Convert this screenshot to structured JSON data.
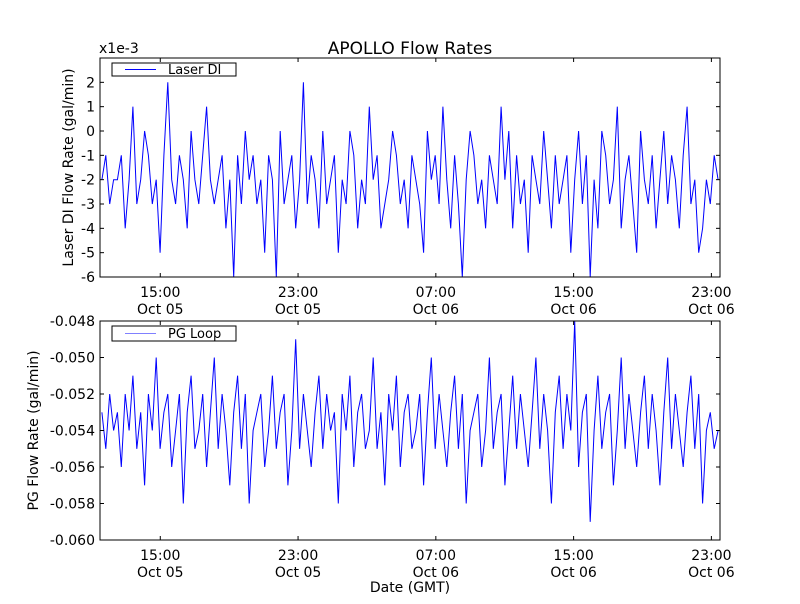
{
  "chart_data": [
    {
      "type": "line",
      "title": "APOLLO Flow Rates",
      "ylabel": "Laser DI Flow Rate (gal/min)",
      "offset_label": "x1e-3",
      "legend": {
        "label": "Laser DI",
        "placement": "top-left"
      },
      "color": "#0000ff",
      "ylim": [
        -6,
        3
      ],
      "yticks": [
        {
          "v": 2,
          "label": "2"
        },
        {
          "v": 1,
          "label": "1"
        },
        {
          "v": 0,
          "label": "0"
        },
        {
          "v": -1,
          "label": "-1"
        },
        {
          "v": -2,
          "label": "-2"
        },
        {
          "v": -3,
          "label": "-3"
        },
        {
          "v": -4,
          "label": "-4"
        },
        {
          "v": -5,
          "label": "-5"
        },
        {
          "v": -6,
          "label": "-6"
        }
      ],
      "x_range_hours": [
        0,
        36
      ],
      "xticks": [
        {
          "hour": 3.5,
          "time": "15:00",
          "date": "Oct 05"
        },
        {
          "hour": 11.5,
          "time": "23:00",
          "date": "Oct 05"
        },
        {
          "hour": 19.5,
          "time": "07:00",
          "date": "Oct 06"
        },
        {
          "hour": 27.5,
          "time": "15:00",
          "date": "Oct 06"
        },
        {
          "hour": 35.5,
          "time": "23:00",
          "date": "Oct 06"
        }
      ],
      "values": [
        -2,
        -1,
        -3,
        -2,
        -2,
        -1,
        -4,
        -2,
        1,
        -3,
        -2,
        0,
        -1,
        -3,
        -2,
        -5,
        -1,
        2,
        -2,
        -3,
        -1,
        -2,
        -4,
        0,
        -2,
        -3,
        -1,
        1,
        -2,
        -3,
        -2,
        -1,
        -4,
        -2,
        -6,
        -1,
        -3,
        0,
        -2,
        -1,
        -3,
        -2,
        -5,
        -1,
        -2,
        -6,
        0,
        -3,
        -2,
        -1,
        -4,
        -2,
        2,
        -3,
        -1,
        -2,
        -4,
        0,
        -3,
        -2,
        -1,
        -5,
        -2,
        -3,
        0,
        -1,
        -4,
        -2,
        -3,
        1,
        -2,
        -1,
        -4,
        -3,
        -2,
        0,
        -1,
        -3,
        -2,
        -4,
        -1,
        -2,
        -3,
        -5,
        0,
        -2,
        -1,
        -3,
        1,
        -2,
        -4,
        -1,
        -3,
        -6,
        -2,
        0,
        -1,
        -3,
        -2,
        -4,
        -1,
        -2,
        -3,
        1,
        -2,
        0,
        -4,
        -1,
        -3,
        -2,
        -5,
        -1,
        -2,
        -3,
        0,
        -2,
        -4,
        -1,
        -3,
        -2,
        -1,
        -5,
        -2,
        0,
        -3,
        -1,
        -6,
        -2,
        -4,
        0,
        -1,
        -3,
        -2,
        1,
        -4,
        -2,
        -1,
        -3,
        -5,
        0,
        -2,
        -3,
        -1,
        -4,
        -2,
        0,
        -3,
        -1,
        -2,
        -4,
        -1,
        1,
        -3,
        -2,
        -5,
        -4,
        -2,
        -3,
        -1,
        -2
      ]
    },
    {
      "type": "line",
      "ylabel": "PG Flow Rate (gal/min)",
      "xlabel": "Date (GMT)",
      "legend": {
        "label": "PG Loop",
        "placement": "top-left"
      },
      "color": "#0000ff",
      "ylim": [
        -0.06,
        -0.048
      ],
      "yticks": [
        {
          "v": -0.048,
          "label": "-0.048"
        },
        {
          "v": -0.05,
          "label": "-0.050"
        },
        {
          "v": -0.052,
          "label": "-0.052"
        },
        {
          "v": -0.054,
          "label": "-0.054"
        },
        {
          "v": -0.056,
          "label": "-0.056"
        },
        {
          "v": -0.058,
          "label": "-0.058"
        },
        {
          "v": -0.06,
          "label": "-0.060"
        }
      ],
      "x_range_hours": [
        0,
        36
      ],
      "xticks": [
        {
          "hour": 3.5,
          "time": "15:00",
          "date": "Oct 05"
        },
        {
          "hour": 11.5,
          "time": "23:00",
          "date": "Oct 05"
        },
        {
          "hour": 19.5,
          "time": "07:00",
          "date": "Oct 06"
        },
        {
          "hour": 27.5,
          "time": "15:00",
          "date": "Oct 06"
        },
        {
          "hour": 35.5,
          "time": "23:00",
          "date": "Oct 06"
        }
      ],
      "values": [
        -0.053,
        -0.055,
        -0.052,
        -0.054,
        -0.053,
        -0.056,
        -0.052,
        -0.054,
        -0.051,
        -0.055,
        -0.053,
        -0.057,
        -0.052,
        -0.054,
        -0.05,
        -0.055,
        -0.053,
        -0.052,
        -0.056,
        -0.054,
        -0.052,
        -0.058,
        -0.053,
        -0.051,
        -0.055,
        -0.054,
        -0.052,
        -0.056,
        -0.053,
        -0.05,
        -0.055,
        -0.052,
        -0.054,
        -0.057,
        -0.053,
        -0.051,
        -0.055,
        -0.052,
        -0.058,
        -0.054,
        -0.053,
        -0.052,
        -0.056,
        -0.054,
        -0.051,
        -0.055,
        -0.053,
        -0.052,
        -0.057,
        -0.054,
        -0.049,
        -0.055,
        -0.052,
        -0.054,
        -0.056,
        -0.053,
        -0.051,
        -0.055,
        -0.052,
        -0.054,
        -0.053,
        -0.058,
        -0.052,
        -0.054,
        -0.051,
        -0.056,
        -0.053,
        -0.052,
        -0.055,
        -0.054,
        -0.05,
        -0.055,
        -0.053,
        -0.057,
        -0.052,
        -0.054,
        -0.051,
        -0.056,
        -0.053,
        -0.052,
        -0.055,
        -0.054,
        -0.052,
        -0.057,
        -0.053,
        -0.05,
        -0.055,
        -0.052,
        -0.054,
        -0.056,
        -0.053,
        -0.051,
        -0.055,
        -0.052,
        -0.058,
        -0.054,
        -0.053,
        -0.052,
        -0.056,
        -0.054,
        -0.05,
        -0.055,
        -0.053,
        -0.052,
        -0.057,
        -0.054,
        -0.051,
        -0.055,
        -0.052,
        -0.054,
        -0.056,
        -0.053,
        -0.05,
        -0.055,
        -0.052,
        -0.054,
        -0.058,
        -0.053,
        -0.051,
        -0.055,
        -0.052,
        -0.054,
        -0.048,
        -0.056,
        -0.053,
        -0.052,
        -0.059,
        -0.054,
        -0.051,
        -0.055,
        -0.053,
        -0.052,
        -0.057,
        -0.054,
        -0.05,
        -0.055,
        -0.052,
        -0.054,
        -0.056,
        -0.053,
        -0.051,
        -0.055,
        -0.052,
        -0.054,
        -0.057,
        -0.053,
        -0.05,
        -0.055,
        -0.052,
        -0.054,
        -0.056,
        -0.053,
        -0.051,
        -0.055,
        -0.052,
        -0.058,
        -0.054,
        -0.053,
        -0.055,
        -0.054
      ]
    }
  ]
}
